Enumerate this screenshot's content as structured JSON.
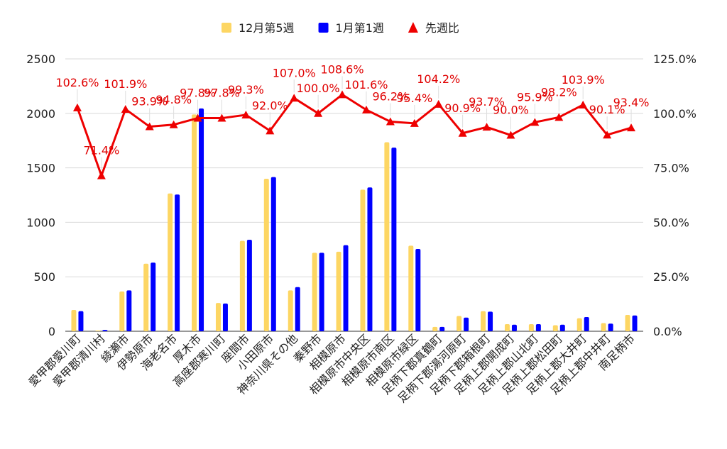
{
  "chart_data": {
    "type": "bar",
    "categories": [
      "愛甲郡愛川町",
      "愛甲郡清川村",
      "綾瀬市",
      "伊勢原市",
      "海老名市",
      "厚木市",
      "高座郡寒川町",
      "座間市",
      "小田原市",
      "神奈川県その他",
      "秦野市",
      "相模原市",
      "相模原市中央区",
      "相模原市南区",
      "相模原市緑区",
      "足柄下郡真鶴町",
      "足柄下郡湯河原町",
      "足柄下郡箱根町",
      "足柄上郡開成町",
      "足柄上郡山北町",
      "足柄上郡松田町",
      "足柄上郡大井町",
      "足柄上郡中井町",
      "南足柄市"
    ],
    "series": [
      {
        "name": "12月第5週",
        "type": "bar",
        "axis": "left",
        "color": "#fdd663",
        "values": [
          195,
          7,
          365,
          620,
          1265,
          1990,
          260,
          830,
          1400,
          375,
          720,
          730,
          1300,
          1735,
          785,
          40,
          140,
          185,
          65,
          65,
          55,
          120,
          75,
          150
        ]
      },
      {
        "name": "1月第1週",
        "type": "bar",
        "axis": "left",
        "color": "#0000ff",
        "values": [
          185,
          12,
          375,
          630,
          1255,
          2045,
          255,
          840,
          1415,
          405,
          720,
          790,
          1320,
          1685,
          755,
          40,
          125,
          180,
          60,
          65,
          60,
          130,
          70,
          145
        ]
      },
      {
        "name": "先週比",
        "type": "line",
        "axis": "right",
        "color": "#ee0000",
        "marker": "triangle",
        "values": [
          102.6,
          71.4,
          101.9,
          93.9,
          94.8,
          97.8,
          97.8,
          99.3,
          92.0,
          107.0,
          100.0,
          108.6,
          101.6,
          96.2,
          95.4,
          104.2,
          90.9,
          93.7,
          90.0,
          95.9,
          98.2,
          103.9,
          90.1,
          93.4
        ],
        "labels": [
          "102.6%",
          "71.4%",
          "101.9%",
          "93.9%",
          "94.8%",
          "97.8%",
          "97.8%",
          "99.3%",
          "92.0%",
          "107.0%",
          "100.0%",
          "108.6%",
          "101.6%",
          "96.2%",
          "95.4%",
          "104.2%",
          "90.9%",
          "93.7%",
          "90.0%",
          "95.9%",
          "98.2%",
          "103.9%",
          "90.1%",
          "93.4%"
        ]
      }
    ],
    "left_axis": {
      "ylim": [
        0,
        2500
      ],
      "ticks": [
        "0",
        "500",
        "1000",
        "1500",
        "2000",
        "2500"
      ]
    },
    "right_axis": {
      "ylim": [
        0,
        125
      ],
      "ticks": [
        "0.0%",
        "25.0%",
        "50.0%",
        "75.0%",
        "100.0%",
        "125.0%"
      ]
    },
    "grid": true,
    "legend_position": "top-center",
    "title": "",
    "xlabel": "",
    "ylabel": ""
  }
}
